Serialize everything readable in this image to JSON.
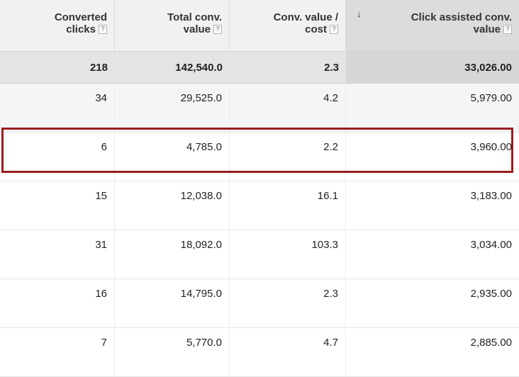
{
  "columns": [
    {
      "line1": "Converted",
      "line2": "clicks",
      "help": "?"
    },
    {
      "line1": "Total conv.",
      "line2": "value",
      "help": "?"
    },
    {
      "line1": "Conv. value /",
      "line2": "cost",
      "help": "?"
    },
    {
      "line1": "Click assisted conv.",
      "line2": "value",
      "help": "?",
      "sorted": true,
      "sort_icon": "↓"
    }
  ],
  "totals": [
    "218",
    "142,540.0",
    "2.3",
    "33,026.00"
  ],
  "rows": [
    [
      "34",
      "29,525.0",
      "4.2",
      "5,979.00"
    ],
    [
      "6",
      "4,785.0",
      "2.2",
      "3,960.00"
    ],
    [
      "15",
      "12,038.0",
      "16.1",
      "3,183.00"
    ],
    [
      "31",
      "18,092.0",
      "103.3",
      "3,034.00"
    ],
    [
      "16",
      "14,795.0",
      "2.3",
      "2,935.00"
    ],
    [
      "7",
      "5,770.0",
      "4.7",
      "2,885.00"
    ]
  ],
  "highlighted_row_index": 1,
  "highlight_color": "#9b1c1c"
}
